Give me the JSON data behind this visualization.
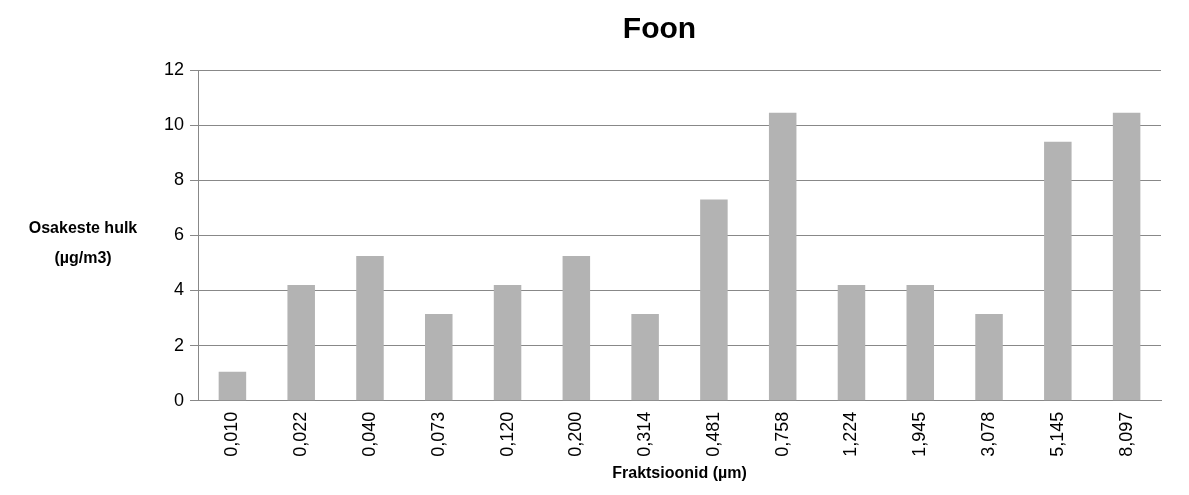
{
  "chart_data": {
    "type": "bar",
    "title": "Foon",
    "xlabel": "Fraktsioonid (µm)",
    "ylabel": "Osakeste hulk (µg/m3)",
    "categories": [
      "0,010",
      "0,022",
      "0,040",
      "0,073",
      "0,120",
      "0,200",
      "0,314",
      "0,481",
      "0,758",
      "1,224",
      "1,945",
      "3,078",
      "5,145",
      "8,097"
    ],
    "values": [
      1.05,
      4.2,
      5.25,
      3.15,
      4.2,
      5.25,
      3.15,
      7.3,
      10.45,
      4.2,
      4.2,
      3.15,
      9.4,
      10.45
    ],
    "color": "#b3b3b3",
    "ylim": [
      0,
      12
    ],
    "yticks": [
      0,
      2,
      4,
      6,
      8,
      10,
      12
    ],
    "grid": "y",
    "legend": false
  }
}
